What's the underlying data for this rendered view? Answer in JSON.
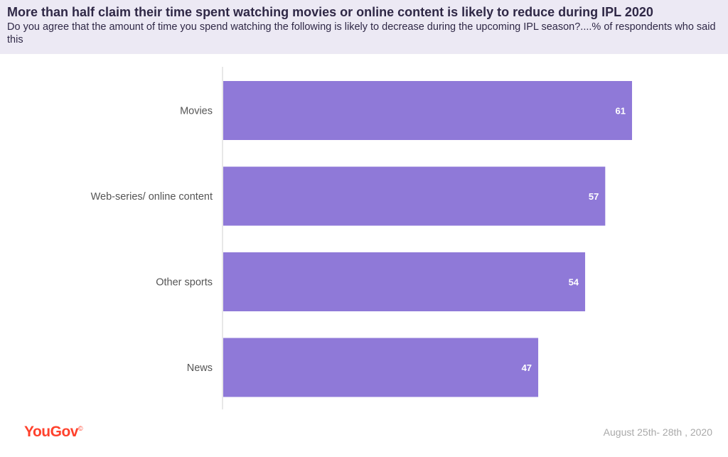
{
  "header": {
    "title": "More than half claim their time spent watching movies or online content is likely to reduce during IPL 2020",
    "subtitle": "Do you agree that the amount of time you spend watching the following is likely to decrease during the upcoming IPL season?....% of respondents who said this"
  },
  "footer": {
    "brand": "YouGov",
    "brand_mark": "©",
    "date": "August 25th- 28th , 2020"
  },
  "colors": {
    "bar": "#8f79d8",
    "header_bg": "#ece9f4",
    "title_text": "#2f2846",
    "brand": "#ff412c",
    "axis": "#d0d0d0",
    "label": "#555555",
    "value_label": "#ffffff"
  },
  "chart_data": {
    "type": "bar",
    "orientation": "horizontal",
    "categories": [
      "Movies",
      "Web-series/ online content",
      "Other sports",
      "News"
    ],
    "values": [
      61,
      57,
      54,
      47
    ],
    "title": "More than half claim their time spent watching movies or online content is likely to reduce during IPL 2020",
    "xlabel": "",
    "ylabel": "",
    "xlim": [
      0,
      75
    ],
    "grid": false,
    "data_labels": true
  }
}
